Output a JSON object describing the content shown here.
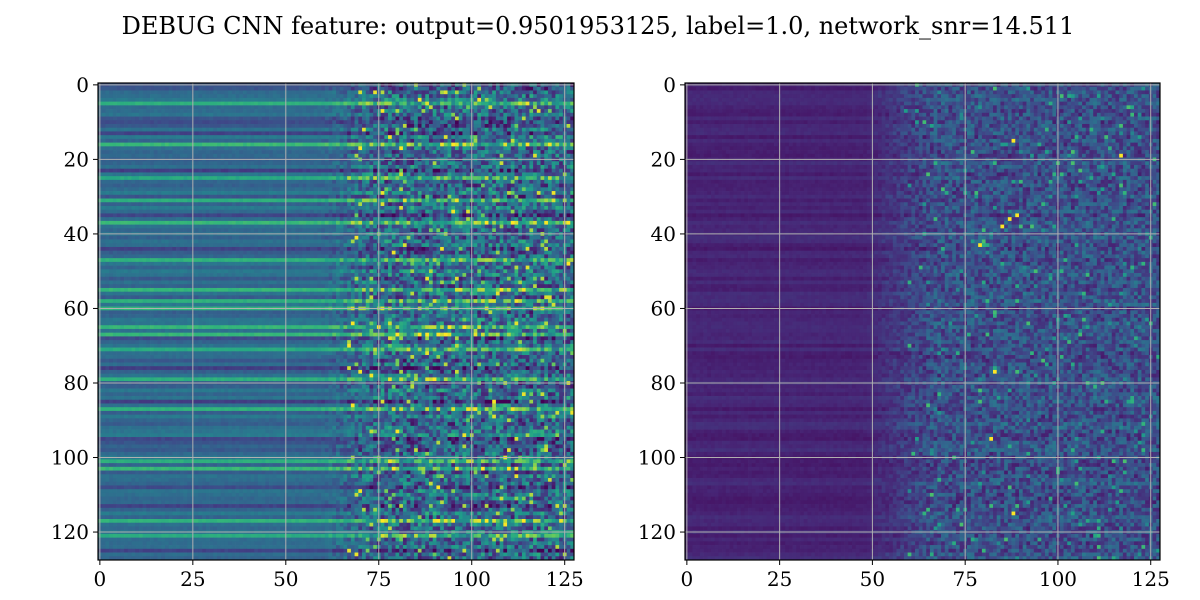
{
  "title": "DEBUG CNN feature: output=0.9501953125, label=1.0, network_snr=14.511",
  "chart_data": [
    {
      "type": "heatmap",
      "colormap": "viridis",
      "rows": 128,
      "cols": 128,
      "xlim": [
        0,
        127
      ],
      "ylim": [
        127,
        0
      ],
      "y_inverted": true,
      "grid": true,
      "grid_color": "#b0b0b0",
      "xticks": [
        "0",
        "25",
        "50",
        "75",
        "100",
        "125"
      ],
      "yticks": [
        "0",
        "20",
        "40",
        "60",
        "80",
        "100",
        "120"
      ],
      "xlabel": "",
      "ylabel": "",
      "structure": "rows show horizontal banding at low columns (0-70), becoming noisy at high columns (75-127); moderate values overall (teal/green)",
      "bright_rows": [
        5,
        16,
        25,
        31,
        37,
        47,
        55,
        58,
        60,
        65,
        67,
        71,
        79,
        87,
        101,
        103,
        117,
        121
      ],
      "dark_rows": [
        10,
        13,
        23,
        35,
        44,
        68,
        76,
        85,
        95,
        108,
        113,
        125
      ]
    },
    {
      "type": "heatmap",
      "colormap": "viridis",
      "rows": 128,
      "cols": 128,
      "xlim": [
        0,
        127
      ],
      "ylim": [
        127,
        0
      ],
      "y_inverted": true,
      "grid": true,
      "grid_color": "#b0b0b0",
      "xticks": [
        "0",
        "25",
        "50",
        "75",
        "100",
        "125"
      ],
      "yticks": [
        "0",
        "20",
        "40",
        "60",
        "80",
        "100",
        "120"
      ],
      "xlabel": "",
      "ylabel": "",
      "structure": "mostly dark purple at low columns (0-55), sparse bright speckles at high columns (65-127)",
      "hot_spots": [
        {
          "row": 15,
          "col": 88
        },
        {
          "row": 19,
          "col": 117
        },
        {
          "row": 36,
          "col": 87
        },
        {
          "row": 35,
          "col": 89
        },
        {
          "row": 38,
          "col": 85
        },
        {
          "row": 43,
          "col": 79
        },
        {
          "row": 77,
          "col": 83
        },
        {
          "row": 95,
          "col": 82
        },
        {
          "row": 115,
          "col": 88
        }
      ]
    }
  ]
}
